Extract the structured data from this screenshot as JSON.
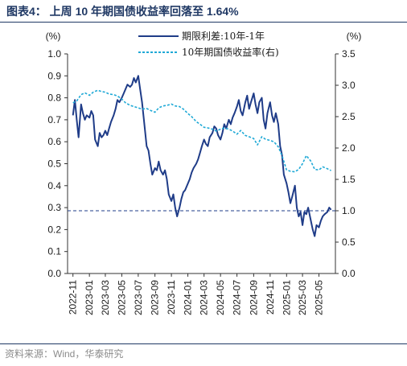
{
  "header": {
    "title": "图表4：  上周 10 年期国债收益率回落至 1.64%"
  },
  "footer": {
    "source": "资料来源：Wind，华泰研究"
  },
  "chart_data": {
    "type": "line",
    "left_unit": "(%)",
    "right_unit": "(%)",
    "left_ylim": [
      0,
      1.0
    ],
    "right_ylim": [
      0,
      3.5
    ],
    "left_ticks": [
      "0.0",
      "0.1",
      "0.2",
      "0.3",
      "0.4",
      "0.5",
      "0.6",
      "0.7",
      "0.8",
      "0.9",
      "1.0"
    ],
    "right_ticks": [
      "0.0",
      "0.5",
      "1.0",
      "1.5",
      "2.0",
      "2.5",
      "3.0",
      "3.5"
    ],
    "x_ticks": [
      "2022-11",
      "2023-01",
      "2023-03",
      "2023-05",
      "2023-07",
      "2023-09",
      "2023-11",
      "2024-01",
      "2024-03",
      "2024-05",
      "2024-07",
      "2024-09",
      "2024-11",
      "2025-01",
      "2025-03",
      "2025-05"
    ],
    "legend_position": "top-center",
    "reference_line": {
      "axis": "right",
      "value": 1.0,
      "style": "dashed"
    },
    "series": [
      {
        "name": "期限利差:10年-1年",
        "axis": "left",
        "color": "#1f3c88",
        "style": "solid",
        "points": [
          [
            "2022-11-01",
            0.72
          ],
          [
            "2022-11-08",
            0.79
          ],
          [
            "2022-11-15",
            0.7
          ],
          [
            "2022-11-22",
            0.62
          ],
          [
            "2022-12-01",
            0.77
          ],
          [
            "2022-12-08",
            0.73
          ],
          [
            "2022-12-15",
            0.7
          ],
          [
            "2022-12-22",
            0.72
          ],
          [
            "2023-01-01",
            0.71
          ],
          [
            "2023-01-08",
            0.74
          ],
          [
            "2023-01-15",
            0.72
          ],
          [
            "2023-01-22",
            0.61
          ],
          [
            "2023-02-01",
            0.58
          ],
          [
            "2023-02-08",
            0.64
          ],
          [
            "2023-02-15",
            0.62
          ],
          [
            "2023-02-22",
            0.63
          ],
          [
            "2023-03-01",
            0.65
          ],
          [
            "2023-03-08",
            0.63
          ],
          [
            "2023-03-15",
            0.66
          ],
          [
            "2023-03-22",
            0.69
          ],
          [
            "2023-04-01",
            0.72
          ],
          [
            "2023-04-08",
            0.75
          ],
          [
            "2023-04-15",
            0.79
          ],
          [
            "2023-04-22",
            0.78
          ],
          [
            "2023-05-01",
            0.8
          ],
          [
            "2023-05-08",
            0.82
          ],
          [
            "2023-05-15",
            0.84
          ],
          [
            "2023-05-22",
            0.86
          ],
          [
            "2023-06-01",
            0.85
          ],
          [
            "2023-06-08",
            0.86
          ],
          [
            "2023-06-15",
            0.89
          ],
          [
            "2023-06-22",
            0.87
          ],
          [
            "2023-07-01",
            0.9
          ],
          [
            "2023-07-08",
            0.84
          ],
          [
            "2023-07-15",
            0.78
          ],
          [
            "2023-07-22",
            0.7
          ],
          [
            "2023-08-01",
            0.58
          ],
          [
            "2023-08-08",
            0.56
          ],
          [
            "2023-08-15",
            0.5
          ],
          [
            "2023-08-22",
            0.45
          ],
          [
            "2023-09-01",
            0.48
          ],
          [
            "2023-09-08",
            0.47
          ],
          [
            "2023-09-15",
            0.51
          ],
          [
            "2023-09-22",
            0.47
          ],
          [
            "2023-10-01",
            0.45
          ],
          [
            "2023-10-08",
            0.47
          ],
          [
            "2023-10-15",
            0.43
          ],
          [
            "2023-10-22",
            0.36
          ],
          [
            "2023-11-01",
            0.33
          ],
          [
            "2023-11-08",
            0.36
          ],
          [
            "2023-11-15",
            0.3
          ],
          [
            "2023-11-22",
            0.26
          ],
          [
            "2023-12-01",
            0.3
          ],
          [
            "2023-12-08",
            0.34
          ],
          [
            "2023-12-15",
            0.37
          ],
          [
            "2023-12-22",
            0.38
          ],
          [
            "2024-01-01",
            0.41
          ],
          [
            "2024-01-08",
            0.43
          ],
          [
            "2024-01-15",
            0.46
          ],
          [
            "2024-01-22",
            0.48
          ],
          [
            "2024-02-01",
            0.5
          ],
          [
            "2024-02-08",
            0.52
          ],
          [
            "2024-02-15",
            0.55
          ],
          [
            "2024-02-22",
            0.58
          ],
          [
            "2024-03-01",
            0.61
          ],
          [
            "2024-03-08",
            0.59
          ],
          [
            "2024-03-15",
            0.58
          ],
          [
            "2024-03-22",
            0.62
          ],
          [
            "2024-04-01",
            0.64
          ],
          [
            "2024-04-08",
            0.67
          ],
          [
            "2024-04-15",
            0.66
          ],
          [
            "2024-04-22",
            0.63
          ],
          [
            "2024-05-01",
            0.61
          ],
          [
            "2024-05-08",
            0.64
          ],
          [
            "2024-05-15",
            0.68
          ],
          [
            "2024-05-22",
            0.66
          ],
          [
            "2024-06-01",
            0.7
          ],
          [
            "2024-06-08",
            0.68
          ],
          [
            "2024-06-15",
            0.71
          ],
          [
            "2024-06-22",
            0.73
          ],
          [
            "2024-07-01",
            0.76
          ],
          [
            "2024-07-08",
            0.79
          ],
          [
            "2024-07-15",
            0.74
          ],
          [
            "2024-07-22",
            0.72
          ],
          [
            "2024-08-01",
            0.78
          ],
          [
            "2024-08-08",
            0.81
          ],
          [
            "2024-08-15",
            0.75
          ],
          [
            "2024-08-22",
            0.78
          ],
          [
            "2024-09-01",
            0.82
          ],
          [
            "2024-09-08",
            0.77
          ],
          [
            "2024-09-15",
            0.73
          ],
          [
            "2024-09-22",
            0.78
          ],
          [
            "2024-10-01",
            0.8
          ],
          [
            "2024-10-08",
            0.7
          ],
          [
            "2024-10-15",
            0.66
          ],
          [
            "2024-10-22",
            0.73
          ],
          [
            "2024-11-01",
            0.78
          ],
          [
            "2024-11-08",
            0.72
          ],
          [
            "2024-11-15",
            0.69
          ],
          [
            "2024-11-22",
            0.73
          ],
          [
            "2024-12-01",
            0.68
          ],
          [
            "2024-12-08",
            0.58
          ],
          [
            "2024-12-15",
            0.54
          ],
          [
            "2024-12-22",
            0.45
          ],
          [
            "2025-01-01",
            0.41
          ],
          [
            "2025-01-08",
            0.37
          ],
          [
            "2025-01-15",
            0.32
          ],
          [
            "2025-01-22",
            0.35
          ],
          [
            "2025-02-01",
            0.4
          ],
          [
            "2025-02-08",
            0.3
          ],
          [
            "2025-02-15",
            0.26
          ],
          [
            "2025-02-22",
            0.28
          ],
          [
            "2025-03-01",
            0.22
          ],
          [
            "2025-03-08",
            0.28
          ],
          [
            "2025-03-15",
            0.27
          ],
          [
            "2025-03-22",
            0.3
          ],
          [
            "2025-04-01",
            0.24
          ],
          [
            "2025-04-08",
            0.2
          ],
          [
            "2025-04-15",
            0.17
          ],
          [
            "2025-04-22",
            0.22
          ],
          [
            "2025-05-01",
            0.21
          ],
          [
            "2025-05-08",
            0.24
          ],
          [
            "2025-05-15",
            0.26
          ],
          [
            "2025-05-22",
            0.27
          ],
          [
            "2025-06-01",
            0.28
          ],
          [
            "2025-06-08",
            0.3
          ],
          [
            "2025-06-15",
            0.29
          ]
        ]
      },
      {
        "name": "10年期国债收益率(右)",
        "axis": "right",
        "color": "#1fa9d6",
        "style": "dashed",
        "points": [
          [
            "2022-11-01",
            2.72
          ],
          [
            "2022-11-15",
            2.75
          ],
          [
            "2022-12-01",
            2.85
          ],
          [
            "2022-12-15",
            2.88
          ],
          [
            "2023-01-01",
            2.84
          ],
          [
            "2023-01-15",
            2.89
          ],
          [
            "2023-02-01",
            2.92
          ],
          [
            "2023-02-15",
            2.9
          ],
          [
            "2023-03-01",
            2.89
          ],
          [
            "2023-03-15",
            2.86
          ],
          [
            "2023-04-01",
            2.85
          ],
          [
            "2023-04-15",
            2.83
          ],
          [
            "2023-05-01",
            2.78
          ],
          [
            "2023-05-15",
            2.72
          ],
          [
            "2023-06-01",
            2.68
          ],
          [
            "2023-06-15",
            2.66
          ],
          [
            "2023-07-01",
            2.64
          ],
          [
            "2023-07-15",
            2.62
          ],
          [
            "2023-08-01",
            2.63
          ],
          [
            "2023-08-15",
            2.6
          ],
          [
            "2023-09-01",
            2.57
          ],
          [
            "2023-09-15",
            2.64
          ],
          [
            "2023-10-01",
            2.67
          ],
          [
            "2023-10-15",
            2.68
          ],
          [
            "2023-11-01",
            2.7
          ],
          [
            "2023-11-15",
            2.67
          ],
          [
            "2023-12-01",
            2.66
          ],
          [
            "2023-12-15",
            2.62
          ],
          [
            "2024-01-01",
            2.55
          ],
          [
            "2024-01-15",
            2.5
          ],
          [
            "2024-02-01",
            2.42
          ],
          [
            "2024-02-15",
            2.38
          ],
          [
            "2024-03-01",
            2.33
          ],
          [
            "2024-03-15",
            2.32
          ],
          [
            "2024-04-01",
            2.3
          ],
          [
            "2024-04-15",
            2.27
          ],
          [
            "2024-05-01",
            2.3
          ],
          [
            "2024-05-15",
            2.32
          ],
          [
            "2024-06-01",
            2.3
          ],
          [
            "2024-06-15",
            2.27
          ],
          [
            "2024-07-01",
            2.22
          ],
          [
            "2024-07-15",
            2.28
          ],
          [
            "2024-08-01",
            2.2
          ],
          [
            "2024-08-15",
            2.18
          ],
          [
            "2024-09-01",
            2.15
          ],
          [
            "2024-09-15",
            2.05
          ],
          [
            "2024-10-01",
            2.18
          ],
          [
            "2024-10-15",
            2.14
          ],
          [
            "2024-11-01",
            2.12
          ],
          [
            "2024-11-15",
            2.1
          ],
          [
            "2024-12-01",
            2.02
          ],
          [
            "2024-12-15",
            1.88
          ],
          [
            "2025-01-01",
            1.65
          ],
          [
            "2025-01-15",
            1.63
          ],
          [
            "2025-02-01",
            1.62
          ],
          [
            "2025-02-15",
            1.66
          ],
          [
            "2025-03-01",
            1.75
          ],
          [
            "2025-03-15",
            1.88
          ],
          [
            "2025-04-01",
            1.79
          ],
          [
            "2025-04-15",
            1.66
          ],
          [
            "2025-05-01",
            1.65
          ],
          [
            "2025-05-15",
            1.7
          ],
          [
            "2025-06-01",
            1.67
          ],
          [
            "2025-06-15",
            1.64
          ]
        ]
      }
    ]
  }
}
